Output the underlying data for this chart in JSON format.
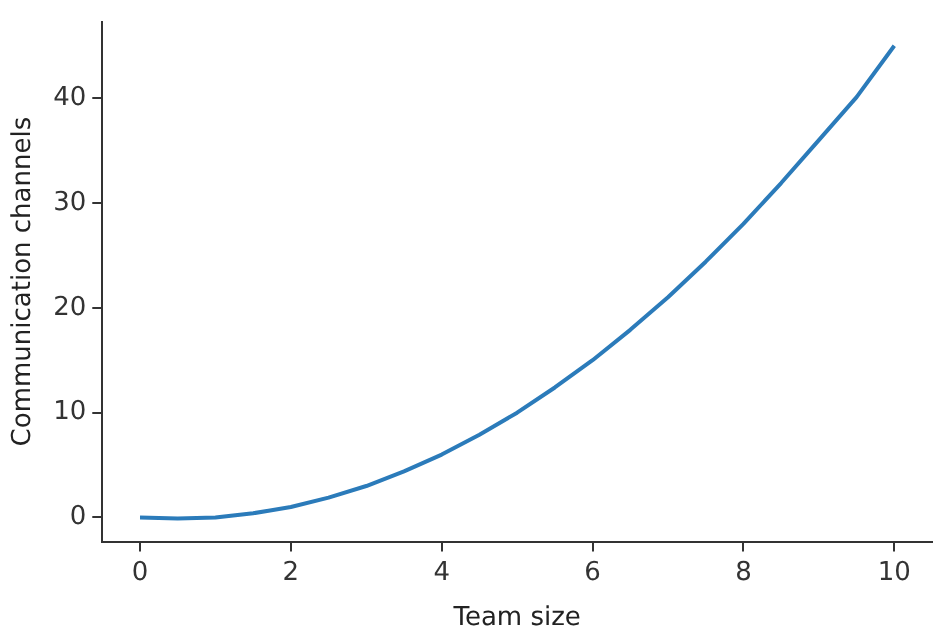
{
  "chart_data": {
    "type": "line",
    "xlabel": "Team size",
    "ylabel": "Communication channels",
    "x": [
      0,
      0.5,
      1,
      1.5,
      2,
      2.5,
      3,
      3.5,
      4,
      4.5,
      5,
      5.5,
      6,
      6.5,
      7,
      7.5,
      8,
      8.5,
      9,
      9.5,
      10
    ],
    "values": [
      0,
      -0.1,
      0,
      0.4,
      1,
      1.9,
      3,
      4.4,
      6,
      7.9,
      10,
      12.4,
      15,
      17.9,
      21,
      24.4,
      28,
      31.9,
      36,
      40.1,
      45
    ],
    "color": "#2b7bba",
    "xlim": [
      -0.5,
      10.5
    ],
    "xticks": [
      0,
      2,
      4,
      6,
      8,
      10
    ],
    "ylim": [
      -2.3,
      47.3
    ],
    "yticks": [
      0,
      10,
      20,
      30,
      40
    ],
    "grid": false,
    "legend": false
  }
}
